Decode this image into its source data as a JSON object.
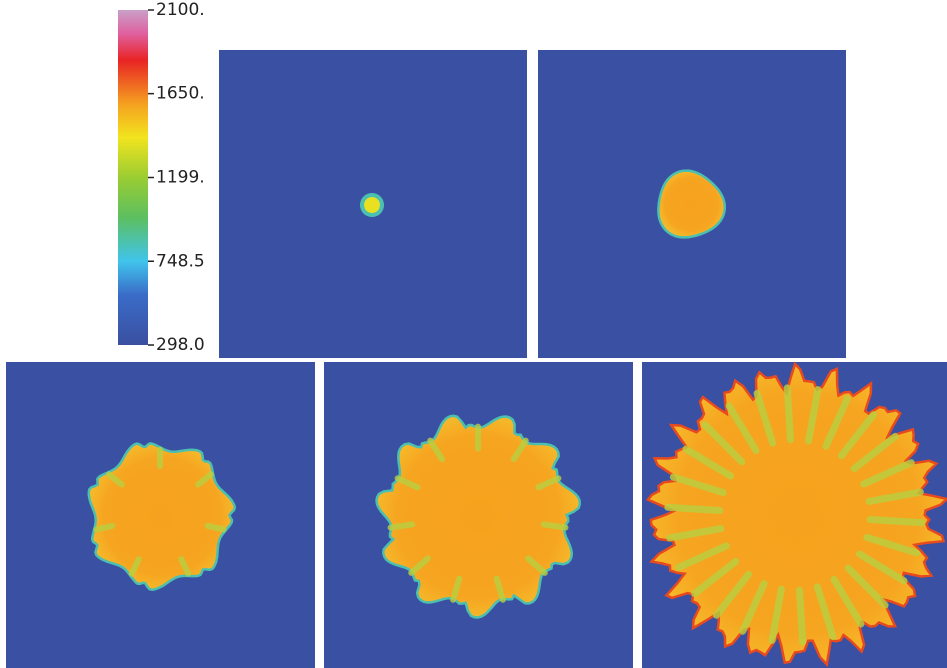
{
  "colorbar": {
    "lim": [
      298.0,
      2100
    ],
    "ticks": [
      {
        "value": 2100,
        "label": "2100."
      },
      {
        "value": 1650,
        "label": "1650."
      },
      {
        "value": 1199,
        "label": "1199."
      },
      {
        "value": 748.5,
        "label": "748.5"
      },
      {
        "value": 298.0,
        "label": "298.0"
      }
    ]
  }
}
